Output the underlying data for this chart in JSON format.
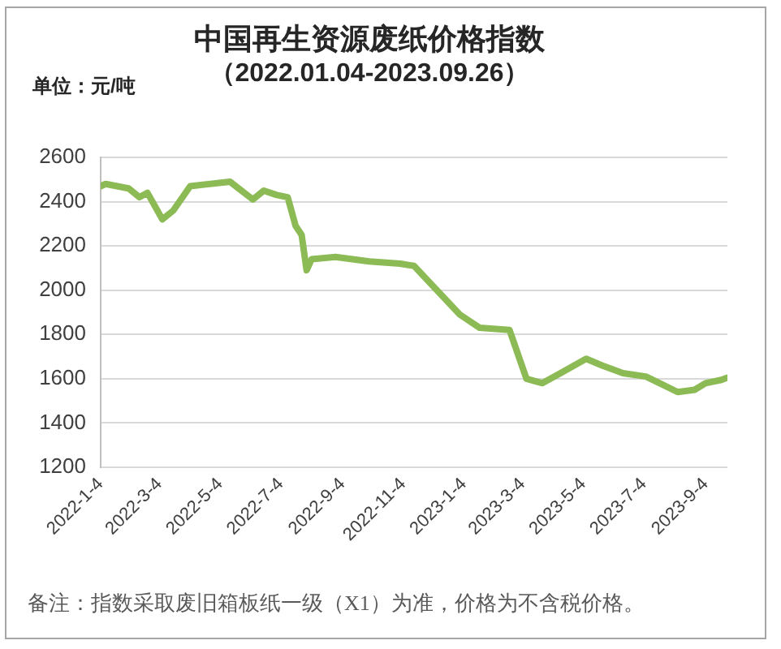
{
  "chart_data": {
    "type": "line",
    "title": "中国再生资源废纸价格指数",
    "subtitle": "（2022.01.04-2023.09.26）",
    "ylabel": "单位：元/吨",
    "annotations": [
      "备注：指数采取废旧箱板纸一级（X1）为准，价格为不含税价格。"
    ],
    "x": [
      "2022-01-04",
      "2022-01-09",
      "2022-02-01",
      "2022-02-12",
      "2022-02-20",
      "2022-03-07",
      "2022-03-18",
      "2022-04-04",
      "2022-05-14",
      "2022-06-06",
      "2022-06-17",
      "2022-06-30",
      "2022-07-11",
      "2022-07-19",
      "2022-07-25",
      "2022-07-30",
      "2022-08-04",
      "2022-08-28",
      "2022-10-01",
      "2022-11-01",
      "2022-11-15",
      "2022-12-08",
      "2022-12-31",
      "2023-01-20",
      "2023-02-19",
      "2023-03-08",
      "2023-03-24",
      "2023-04-09",
      "2023-04-25",
      "2023-05-07",
      "2023-05-23",
      "2023-06-13",
      "2023-07-06",
      "2023-07-22",
      "2023-08-07",
      "2023-08-24",
      "2023-09-04",
      "2023-09-20",
      "2023-09-26"
    ],
    "values": [
      2470,
      2480,
      2460,
      2420,
      2440,
      2320,
      2360,
      2470,
      2490,
      2410,
      2450,
      2430,
      2420,
      2290,
      2250,
      2090,
      2140,
      2150,
      2130,
      2120,
      2110,
      2000,
      1890,
      1830,
      1820,
      1600,
      1580,
      1620,
      1660,
      1690,
      1660,
      1625,
      1610,
      1575,
      1540,
      1550,
      1580,
      1595,
      1605
    ],
    "color": "#8cbb55",
    "marker": "none",
    "grid": "y",
    "xlim": [
      "2022-01-04",
      "2023-09-26"
    ],
    "xticks": [
      {
        "value": "2022-01-04",
        "label": "2022-1-4"
      },
      {
        "value": "2022-03-04",
        "label": "2022-3-4"
      },
      {
        "value": "2022-05-04",
        "label": "2022-5-4"
      },
      {
        "value": "2022-07-04",
        "label": "2022-7-4"
      },
      {
        "value": "2022-09-04",
        "label": "2022-9-4"
      },
      {
        "value": "2022-11-04",
        "label": "2022-11-4"
      },
      {
        "value": "2023-01-04",
        "label": "2023-1-4"
      },
      {
        "value": "2023-03-04",
        "label": "2023-3-4"
      },
      {
        "value": "2023-05-04",
        "label": "2023-5-4"
      },
      {
        "value": "2023-07-04",
        "label": "2023-7-4"
      },
      {
        "value": "2023-09-04",
        "label": "2023-9-4"
      }
    ],
    "ylim": [
      1200,
      2600
    ],
    "yticks": [
      1200,
      1400,
      1600,
      1800,
      2000,
      2200,
      2400,
      2600
    ]
  }
}
